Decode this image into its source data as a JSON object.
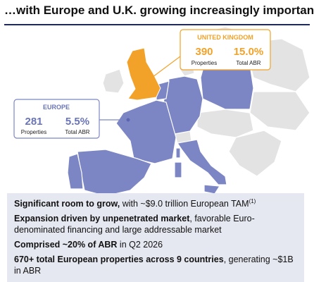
{
  "header": {
    "title": "…with Europe and U.K. growing increasingly important"
  },
  "callouts": [
    {
      "label": "UNITED KINGDOM",
      "stats": [
        {
          "value": "390",
          "caption": "Properties"
        },
        {
          "value": "15.0%",
          "caption": "Total ABR"
        }
      ]
    },
    {
      "label": "EUROPE",
      "stats": [
        {
          "value": "281",
          "caption": "Properties"
        },
        {
          "value": "5.5%",
          "caption": "Total ABR"
        }
      ]
    }
  ],
  "bullets": [
    {
      "bold": "Significant room to grow,",
      "text": " with ~$9.0 trillion European TAM",
      "sup": "(1)"
    },
    {
      "bold": "Expansion driven by unpenetrated market",
      "text": ", favorable Euro-denominated financing and large addressable market"
    },
    {
      "bold": "Comprised ~20% of ABR",
      "text": " in Q2 2026"
    },
    {
      "bold": "670+ total European properties across 9 countries",
      "text": ", generating ~$1B in ABR"
    }
  ]
}
